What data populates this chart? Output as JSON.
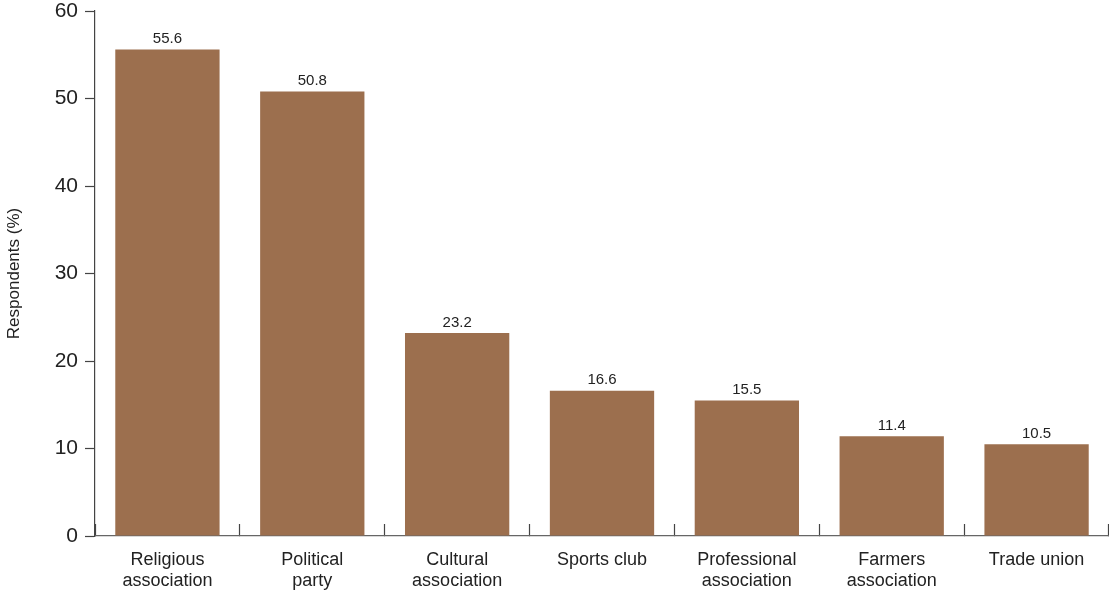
{
  "chart_data": {
    "type": "bar",
    "ylabel": "Respondents (%)",
    "categories": [
      "Religious association",
      "Political party",
      "Cultural association",
      "Sports club",
      "Professional association",
      "Farmers association",
      "Trade union"
    ],
    "values": [
      55.6,
      50.8,
      23.2,
      16.6,
      15.5,
      11.4,
      10.5
    ],
    "color": "#9c6f4e",
    "ylim": [
      0,
      60
    ],
    "yticks": [
      0,
      10,
      20,
      30,
      40,
      50,
      60
    ],
    "data_labels": true
  }
}
